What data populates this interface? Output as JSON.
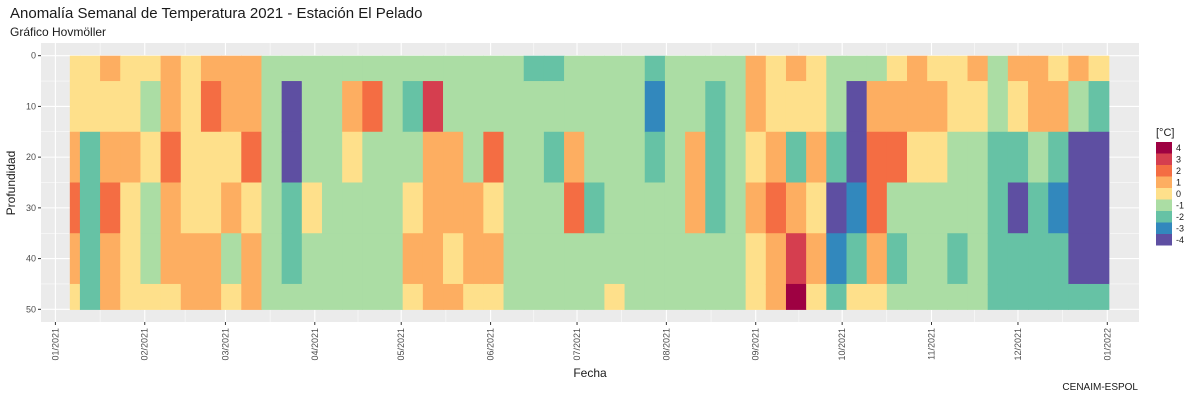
{
  "title": "Anomalía Semanal de Temperatura 2021 - Estación El Pelado",
  "subtitle": "Gráfico Hovmöller",
  "caption": "CENAIM-ESPOL",
  "chart_data": {
    "type": "heatmap",
    "xlabel": "Fecha",
    "ylabel": "Profundidad",
    "x_ticks": [
      "01/2021",
      "02/2021",
      "03/2021",
      "04/2021",
      "05/2021",
      "06/2021",
      "07/2021",
      "08/2021",
      "09/2021",
      "10/2021",
      "11/2021",
      "12/2021",
      "01/2022"
    ],
    "x_range": [
      "2020-12-27",
      "2022-01-12"
    ],
    "y_ticks": [
      0,
      10,
      20,
      30,
      40,
      50
    ],
    "y_range": [
      -2.5,
      52.5
    ],
    "y_reversed": true,
    "legend": {
      "title": "[°C]",
      "position": "right",
      "labels": [
        "4",
        "3",
        "2",
        "1",
        "0",
        "-1",
        "-2",
        "-3",
        "-4"
      ],
      "colors": [
        "#9e0142",
        "#d53e4f",
        "#f46d43",
        "#fdae61",
        "#fee08b",
        "#abdda4",
        "#66c2a5",
        "#3288bd",
        "#5e4fa2"
      ]
    },
    "background": "#ebebeb",
    "grid": true,
    "dates": [
      "2021-01-06",
      "2021-01-13",
      "2021-01-20",
      "2021-01-27",
      "2021-02-03",
      "2021-02-10",
      "2021-02-17",
      "2021-02-24",
      "2021-03-03",
      "2021-03-10",
      "2021-03-17",
      "2021-03-24",
      "2021-03-31",
      "2021-04-07",
      "2021-04-14",
      "2021-04-21",
      "2021-04-28",
      "2021-05-05",
      "2021-05-12",
      "2021-05-19",
      "2021-05-26",
      "2021-06-02",
      "2021-06-09",
      "2021-06-16",
      "2021-06-23",
      "2021-06-30",
      "2021-07-07",
      "2021-07-14",
      "2021-07-21",
      "2021-07-28",
      "2021-08-04",
      "2021-08-11",
      "2021-08-18",
      "2021-08-25",
      "2021-09-01",
      "2021-09-08",
      "2021-09-15",
      "2021-09-22",
      "2021-09-29",
      "2021-10-06",
      "2021-10-13",
      "2021-10-20",
      "2021-10-27",
      "2021-11-03",
      "2021-11-10",
      "2021-11-17",
      "2021-11-24",
      "2021-12-01",
      "2021-12-08",
      "2021-12-15",
      "2021-12-22",
      "2021-12-29"
    ],
    "depths": [
      0,
      10,
      20,
      30,
      40,
      50
    ],
    "values": [
      [
        0.5,
        0.3,
        0.6,
        2.5,
        0.6,
        0.2
      ],
      [
        0.4,
        0.2,
        -1.8,
        -2.2,
        -1.6,
        -2.3
      ],
      [
        0.6,
        0.5,
        1.2,
        2.2,
        1.0,
        0.6
      ],
      [
        0.5,
        0.4,
        0.6,
        0.4,
        0.5,
        0.3
      ],
      [
        0.5,
        -0.6,
        -0.4,
        -0.6,
        -0.7,
        0.5
      ],
      [
        0.6,
        0.8,
        1.8,
        0.7,
        0.6,
        0.5
      ],
      [
        0.5,
        0.5,
        0.4,
        -0.3,
        0.6,
        0.6
      ],
      [
        0.6,
        1.6,
        0.5,
        0.4,
        0.7,
        0.6
      ],
      [
        0.6,
        0.6,
        0.5,
        1.2,
        -0.6,
        0.5
      ],
      [
        0.7,
        0.7,
        1.8,
        0.5,
        1.1,
        0.6
      ],
      [
        -0.5,
        -0.6,
        -0.6,
        -0.5,
        -0.6,
        -0.5
      ],
      [
        -0.6,
        -3.5,
        -3.7,
        -2.2,
        -2.0,
        -0.6
      ],
      [
        -0.7,
        -0.8,
        -0.6,
        -0.4,
        -0.6,
        -0.7
      ],
      [
        -0.5,
        -0.5,
        -0.6,
        -0.6,
        -0.7,
        -0.6
      ],
      [
        -0.6,
        0.7,
        -0.4,
        -0.6,
        -0.5,
        -0.6
      ],
      [
        -0.6,
        1.6,
        -0.6,
        -0.5,
        -0.5,
        -0.5
      ],
      [
        -0.5,
        -0.6,
        -0.6,
        -0.7,
        -0.6,
        -0.6
      ],
      [
        -0.6,
        -2.1,
        -0.5,
        0.5,
        0.6,
        0.5
      ],
      [
        -0.5,
        3.5,
        0.7,
        0.8,
        0.7,
        0.6
      ],
      [
        -0.6,
        -0.8,
        0.6,
        0.7,
        0.5,
        0.6
      ],
      [
        -0.6,
        -0.6,
        -0.6,
        0.6,
        0.6,
        0.5
      ],
      [
        -0.5,
        -0.5,
        1.6,
        0.5,
        0.6,
        0.4
      ],
      [
        -0.6,
        -0.6,
        -0.6,
        -0.7,
        -0.6,
        -0.6
      ],
      [
        -2.2,
        -0.6,
        -0.7,
        -0.6,
        -0.7,
        -0.5
      ],
      [
        -2.3,
        -0.7,
        -2.1,
        -0.6,
        -0.6,
        -0.6
      ],
      [
        -0.5,
        -0.6,
        0.6,
        1.8,
        -0.6,
        -0.5
      ],
      [
        -0.6,
        -0.7,
        -0.6,
        -2.1,
        -0.7,
        -0.5
      ],
      [
        -0.5,
        -0.6,
        -0.6,
        -0.5,
        -0.6,
        0.5
      ],
      [
        -0.7,
        -0.5,
        -0.7,
        -0.5,
        -0.6,
        -0.6
      ],
      [
        -2.3,
        -3.2,
        -2.2,
        -0.6,
        -0.7,
        -0.6
      ],
      [
        -0.6,
        -0.5,
        -0.7,
        -0.6,
        -0.6,
        -0.7
      ],
      [
        -0.5,
        -0.6,
        0.6,
        1.5,
        -0.6,
        -0.7
      ],
      [
        -0.6,
        -2.1,
        -2.0,
        -2.3,
        -0.7,
        -0.6
      ],
      [
        -0.6,
        -0.6,
        -0.6,
        -0.7,
        -0.6,
        -0.6
      ],
      [
        0.6,
        0.6,
        0.5,
        0.6,
        0.5,
        0.5
      ],
      [
        0.5,
        0.4,
        0.6,
        1.8,
        0.7,
        1.2
      ],
      [
        0.6,
        0.5,
        -1.6,
        0.7,
        2.6,
        3.7
      ],
      [
        0.5,
        0.4,
        0.6,
        0.5,
        0.6,
        0.5
      ],
      [
        -0.6,
        -0.7,
        -2.1,
        -3.5,
        -2.5,
        -2.2
      ],
      [
        -0.5,
        -3.6,
        -3.8,
        -2.6,
        -2.4,
        0.5
      ],
      [
        -0.6,
        0.6,
        1.6,
        2.5,
        1.4,
        0.5
      ],
      [
        0.5,
        0.6,
        1.8,
        -0.6,
        -2.2,
        -0.5
      ],
      [
        0.6,
        0.7,
        0.5,
        -0.6,
        -0.5,
        -0.6
      ],
      [
        0.5,
        0.6,
        0.5,
        -0.7,
        -0.6,
        -0.6
      ],
      [
        0.5,
        0.5,
        -0.6,
        -0.5,
        -2.0,
        -0.6
      ],
      [
        0.6,
        0.5,
        -0.5,
        -0.6,
        -0.7,
        -0.5
      ],
      [
        -0.5,
        -0.6,
        -2.1,
        -2.3,
        -2.2,
        -2.2
      ],
      [
        0.6,
        0.4,
        -2.2,
        -3.5,
        -2.4,
        -2.3
      ],
      [
        0.7,
        0.6,
        -0.6,
        -2.1,
        -2.2,
        -2.2
      ],
      [
        0.5,
        0.6,
        -1.6,
        -3.4,
        -2.3,
        -2.2
      ],
      [
        0.6,
        -0.7,
        -3.5,
        -3.7,
        -3.6,
        -2.3
      ],
      [
        0.5,
        -2.2,
        -3.6,
        -3.8,
        -3.6,
        -2.3
      ]
    ]
  }
}
